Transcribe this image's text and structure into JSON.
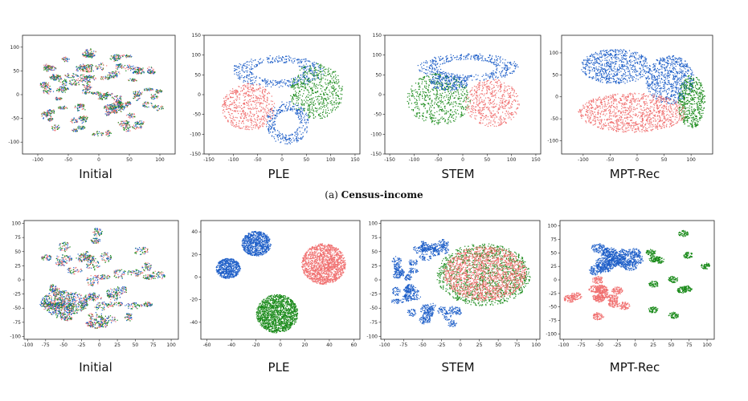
{
  "caption": {
    "prefix": "(a)",
    "name": "Census-income"
  },
  "colors": {
    "blue": "#1f5fc8",
    "red": "#f07070",
    "green": "#1a8a1a"
  },
  "chart_data": [
    {
      "type": "scatter",
      "title": "Initial",
      "xticks": [
        -100,
        -50,
        0,
        50,
        100
      ],
      "yticks": [
        100,
        50,
        0,
        -50,
        -100
      ],
      "xlim": [
        -125,
        125
      ],
      "ylim": [
        -125,
        125
      ]
    },
    {
      "type": "scatter",
      "title": "PLE",
      "xticks": [
        -150,
        -100,
        -50,
        0,
        50,
        100,
        150
      ],
      "yticks": [
        150,
        100,
        50,
        0,
        -50,
        -100,
        -150
      ],
      "xlim": [
        -160,
        160
      ],
      "ylim": [
        -150,
        150
      ]
    },
    {
      "type": "scatter",
      "title": "STEM",
      "xticks": [
        -150,
        -100,
        -50,
        0,
        50,
        100,
        150
      ],
      "yticks": [
        150,
        100,
        50,
        0,
        -50,
        -100,
        -150
      ],
      "xlim": [
        -160,
        160
      ],
      "ylim": [
        -150,
        150
      ]
    },
    {
      "type": "scatter",
      "title": "MPT-Rec",
      "xticks": [
        -100,
        -50,
        0,
        50,
        100
      ],
      "yticks": [
        100,
        50,
        0,
        -50,
        -100
      ],
      "xlim": [
        -140,
        140
      ],
      "ylim": [
        -130,
        140
      ]
    },
    {
      "type": "scatter",
      "title": "Initial",
      "xticks": [
        -100,
        -75,
        -50,
        -25,
        0,
        25,
        50,
        75,
        100
      ],
      "yticks": [
        100,
        75,
        50,
        25,
        0,
        -25,
        -50,
        -75,
        -100
      ],
      "xlim": [
        -105,
        110
      ],
      "ylim": [
        -105,
        105
      ]
    },
    {
      "type": "scatter",
      "title": "PLE",
      "xticks": [
        -60,
        -40,
        -20,
        0,
        20,
        40,
        60
      ],
      "yticks": [
        40,
        20,
        0,
        -20,
        -40
      ],
      "xlim": [
        -65,
        65
      ],
      "ylim": [
        -55,
        50
      ]
    },
    {
      "type": "scatter",
      "title": "STEM",
      "xticks": [
        -100,
        -75,
        -50,
        -25,
        0,
        25,
        50,
        75,
        100
      ],
      "yticks": [
        100,
        75,
        50,
        25,
        0,
        -25,
        -50,
        -75,
        -100
      ],
      "xlim": [
        -105,
        105
      ],
      "ylim": [
        -105,
        105
      ]
    },
    {
      "type": "scatter",
      "title": "MPT-Rec",
      "xticks": [
        -100,
        -75,
        -50,
        -25,
        0,
        25,
        50,
        75,
        100
      ],
      "yticks": [
        100,
        75,
        50,
        25,
        0,
        -25,
        -50,
        -75,
        -100
      ],
      "xlim": [
        -105,
        110
      ],
      "ylim": [
        -110,
        110
      ]
    }
  ]
}
